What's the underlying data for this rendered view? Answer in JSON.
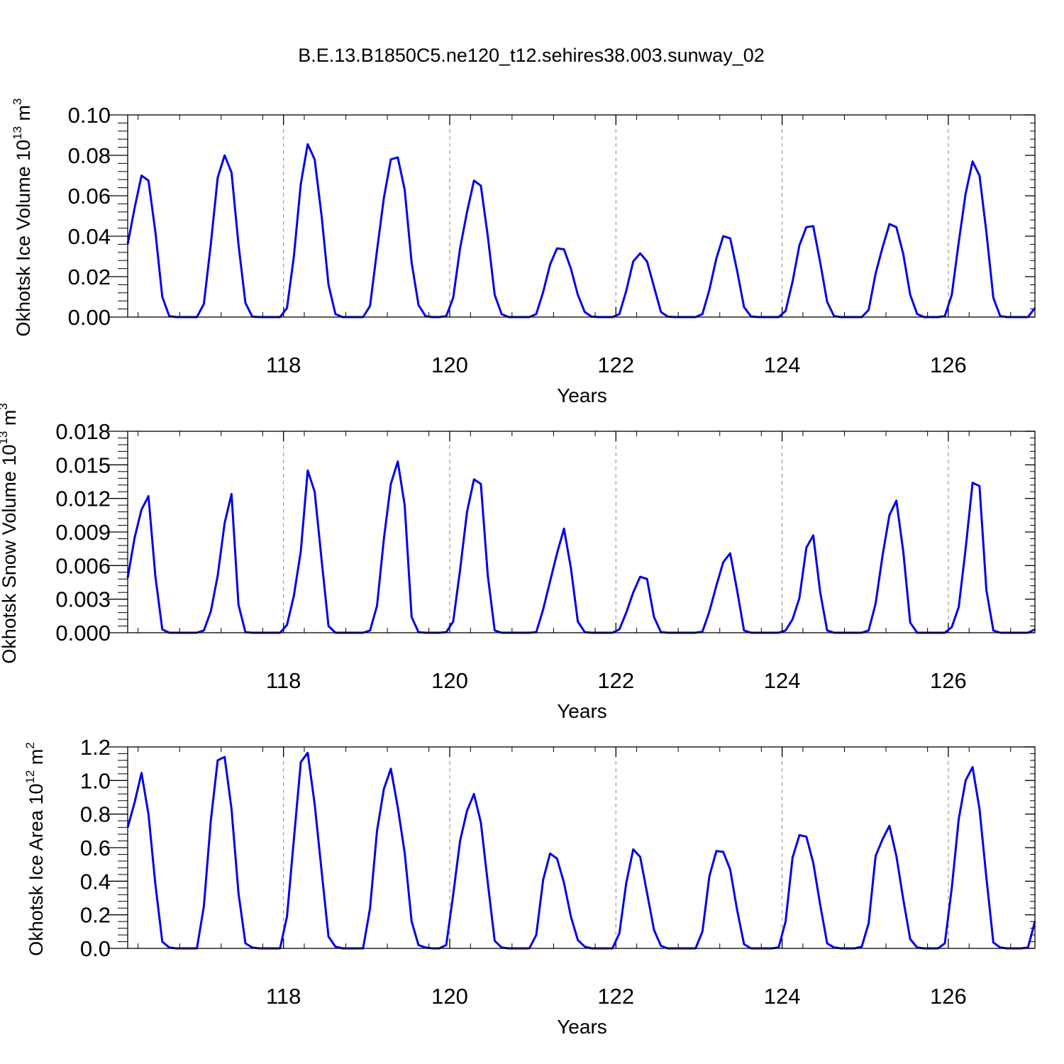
{
  "chart_data": [
    {
      "type": "line",
      "title": "B.E.13.B1850C5.ne120_t12.sehires38.003.sunway_02",
      "xlabel": "Years",
      "ylabel": {
        "base": "Okhotsk Ice Volume 10",
        "exp": "13",
        "unit": " m",
        "unit_exp": "3"
      },
      "xlim": [
        116.125,
        127.042
      ],
      "ylim": [
        0,
        0.1
      ],
      "xticks": [
        118,
        120,
        122,
        124,
        126
      ],
      "xtick_labels": [
        "118",
        "120",
        "122",
        "124",
        "126"
      ],
      "yticks": [
        0,
        0.02,
        0.04,
        0.06,
        0.08,
        0.1
      ],
      "ytick_labels": [
        "0.00",
        "0.02",
        "0.04",
        "0.06",
        "0.08",
        "0.10"
      ],
      "line_color": "#0000ee",
      "grid": "vertical dashed at major x ticks",
      "series": [
        {
          "x_start": 116.125,
          "x_step": 0.0833333,
          "values": [
            0.036,
            0.054,
            0.07,
            0.0675,
            0.042,
            0.01,
            0.0005,
            0,
            0,
            0,
            0,
            0.0065,
            0.036,
            0.069,
            0.08,
            0.0715,
            0.036,
            0.007,
            0.0002,
            0,
            0,
            0,
            0,
            0.0045,
            0.03,
            0.066,
            0.0855,
            0.078,
            0.05,
            0.016,
            0.0015,
            0,
            0,
            0,
            0,
            0.0055,
            0.033,
            0.059,
            0.078,
            0.079,
            0.063,
            0.027,
            0.006,
            0.0005,
            0,
            0,
            0.0005,
            0.0095,
            0.034,
            0.052,
            0.0675,
            0.065,
            0.04,
            0.011,
            0.0015,
            0,
            0,
            0,
            0,
            0.0015,
            0.0125,
            0.026,
            0.034,
            0.0335,
            0.024,
            0.011,
            0.0025,
            0.0002,
            0,
            0,
            0,
            0.0015,
            0.013,
            0.0275,
            0.0315,
            0.0275,
            0.015,
            0.0025,
            0.0002,
            0,
            0,
            0,
            0,
            0.0015,
            0.0135,
            0.029,
            0.04,
            0.039,
            0.023,
            0.005,
            0.0003,
            0,
            0,
            0,
            0,
            0.003,
            0.0175,
            0.0355,
            0.0445,
            0.045,
            0.027,
            0.0075,
            0.0005,
            0,
            0,
            0,
            0,
            0.0035,
            0.0215,
            0.0345,
            0.046,
            0.0445,
            0.031,
            0.011,
            0.0015,
            0,
            0,
            0,
            0.0005,
            0.011,
            0.037,
            0.061,
            0.077,
            0.07,
            0.042,
            0.0095,
            0.0005,
            0,
            0,
            0,
            0,
            0.0045
          ]
        }
      ]
    },
    {
      "type": "line",
      "xlabel": "Years",
      "ylabel": {
        "base": "Okhotsk Snow Volume 10",
        "exp": "13",
        "unit": " m",
        "unit_exp": "3"
      },
      "xlim": [
        116.125,
        127.042
      ],
      "ylim": [
        0,
        0.018
      ],
      "xticks": [
        118,
        120,
        122,
        124,
        126
      ],
      "xtick_labels": [
        "118",
        "120",
        "122",
        "124",
        "126"
      ],
      "yticks": [
        0,
        0.003,
        0.006,
        0.009,
        0.012,
        0.015,
        0.018
      ],
      "ytick_labels": [
        "0.000",
        "0.003",
        "0.006",
        "0.009",
        "0.012",
        "0.015",
        "0.018"
      ],
      "line_color": "#0000ee",
      "grid": "vertical dashed at major x ticks",
      "series": [
        {
          "x_start": 116.125,
          "x_step": 0.0833333,
          "values": [
            0.0049,
            0.0085,
            0.011,
            0.0122,
            0.005,
            0.0003,
            0,
            0,
            0,
            0,
            0,
            0.0002,
            0.0019,
            0.0051,
            0.0098,
            0.0124,
            0.0025,
            5e-05,
            0,
            0,
            0,
            0,
            0,
            0.0007,
            0.0033,
            0.0073,
            0.0145,
            0.0126,
            0.0065,
            0.0006,
            0,
            0,
            0,
            0,
            0,
            0.0002,
            0.0024,
            0.0084,
            0.0133,
            0.0153,
            0.0114,
            0.0014,
            5e-05,
            0,
            0,
            0,
            5e-05,
            0.001,
            0.0056,
            0.0108,
            0.0137,
            0.0133,
            0.0051,
            0.0002,
            0,
            0,
            0,
            0,
            0,
            5e-05,
            0.0021,
            0.0046,
            0.0071,
            0.0093,
            0.0058,
            0.001,
            5e-05,
            0,
            0,
            0,
            0,
            0.0003,
            0.0018,
            0.0036,
            0.005,
            0.0048,
            0.0014,
            5e-05,
            0,
            0,
            0,
            0,
            0,
            0.0001,
            0.0019,
            0.0042,
            0.0063,
            0.0071,
            0.0038,
            0.0002,
            0,
            0,
            0,
            0,
            0,
            0.0002,
            0.0012,
            0.0031,
            0.0076,
            0.0087,
            0.0036,
            0.0002,
            0,
            0,
            0,
            0,
            0,
            0.0002,
            0.0026,
            0.0069,
            0.0105,
            0.0118,
            0.0072,
            0.0009,
            0,
            0,
            0,
            0,
            0,
            0.0005,
            0.0023,
            0.0075,
            0.0134,
            0.0131,
            0.0038,
            0.0002,
            0,
            0,
            0,
            0,
            0,
            0.0003
          ]
        }
      ]
    },
    {
      "type": "line",
      "xlabel": "Years",
      "ylabel": {
        "base": "Okhotsk Ice Area 10",
        "exp": "12",
        "unit": " m",
        "unit_exp": "2"
      },
      "xlim": [
        116.125,
        127.042
      ],
      "ylim": [
        0,
        1.2
      ],
      "xticks": [
        118,
        120,
        122,
        124,
        126
      ],
      "xtick_labels": [
        "118",
        "120",
        "122",
        "124",
        "126"
      ],
      "yticks": [
        0,
        0.2,
        0.4,
        0.6,
        0.8,
        1.0,
        1.2
      ],
      "ytick_labels": [
        "0.0",
        "0.2",
        "0.4",
        "0.6",
        "0.8",
        "1.0",
        "1.2"
      ],
      "line_color": "#0000ee",
      "grid": "vertical dashed at major x ticks",
      "series": [
        {
          "x_start": 116.125,
          "x_step": 0.0833333,
          "values": [
            0.72,
            0.87,
            1.045,
            0.8,
            0.38,
            0.04,
            0.005,
            0,
            0,
            0,
            0,
            0.25,
            0.76,
            1.12,
            1.14,
            0.83,
            0.33,
            0.03,
            0.005,
            0,
            0,
            0,
            0,
            0.19,
            0.65,
            1.11,
            1.165,
            0.86,
            0.46,
            0.07,
            0.01,
            0,
            0,
            0,
            0,
            0.24,
            0.7,
            0.95,
            1.07,
            0.84,
            0.57,
            0.16,
            0.02,
            0.005,
            0,
            0,
            0.02,
            0.32,
            0.64,
            0.82,
            0.92,
            0.75,
            0.39,
            0.045,
            0.005,
            0,
            0,
            0,
            0,
            0.08,
            0.41,
            0.565,
            0.535,
            0.39,
            0.19,
            0.05,
            0.01,
            0,
            0,
            0,
            0,
            0.09,
            0.39,
            0.59,
            0.545,
            0.33,
            0.11,
            0.015,
            0,
            0,
            0,
            0,
            0,
            0.1,
            0.43,
            0.58,
            0.575,
            0.47,
            0.23,
            0.025,
            0,
            0,
            0,
            0,
            0.005,
            0.16,
            0.54,
            0.675,
            0.665,
            0.51,
            0.26,
            0.03,
            0.005,
            0,
            0,
            0,
            0.01,
            0.15,
            0.55,
            0.65,
            0.73,
            0.55,
            0.29,
            0.055,
            0.005,
            0,
            0,
            0,
            0.03,
            0.36,
            0.77,
            1.0,
            1.08,
            0.83,
            0.42,
            0.035,
            0.005,
            0,
            0,
            0,
            0.005,
            0.16
          ]
        }
      ]
    }
  ]
}
